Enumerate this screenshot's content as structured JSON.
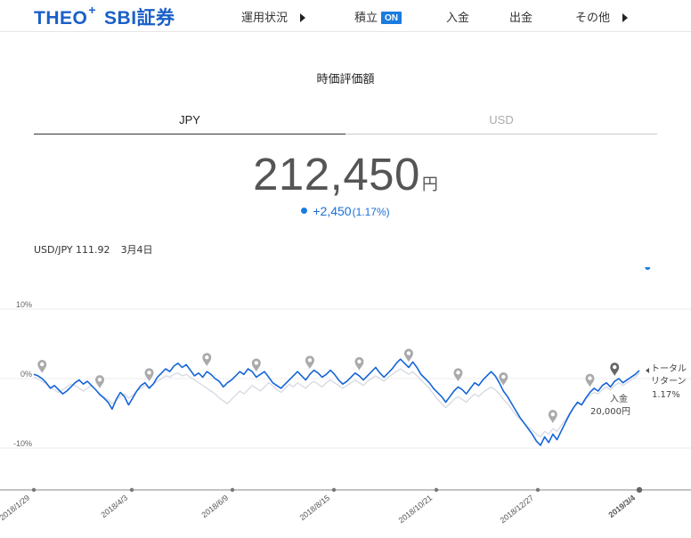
{
  "header": {
    "logo_theo": "THEO",
    "logo_plus": "+",
    "logo_partner": "SBI証券",
    "nav": {
      "performance": "運用状況",
      "savings": "積立",
      "savings_badge": "ON",
      "deposit": "入金",
      "withdraw": "出金",
      "other": "その他"
    }
  },
  "valuation": {
    "title": "時価評価額",
    "tabs": [
      {
        "label": "JPY",
        "active": true
      },
      {
        "label": "USD",
        "active": false
      }
    ],
    "amount": "212,450",
    "unit": "円",
    "change": "+2,450",
    "change_pct": "(1.17%)",
    "fx_label": "USD/JPY 111.92",
    "fx_date": "3月4日"
  },
  "chart_data": {
    "type": "line",
    "y_ticks": [
      "10%",
      "0%",
      "-10%"
    ],
    "ylim": [
      -13,
      13
    ],
    "x_labels": [
      "2018/1/29",
      "2018/4/3",
      "2018/6/9",
      "2018/8/15",
      "2018/10/21",
      "2018/12/27",
      "2019/3/4"
    ],
    "grid": true,
    "colors": {
      "portfolio": "#1565d8",
      "benchmark": "#d8dbe3",
      "marker": "#1a7be0",
      "event": "#aaaaaa",
      "event_dark": "#666666"
    },
    "series": [
      {
        "values": [
          0.6,
          0.4,
          0.0,
          -0.6,
          -1.4,
          -1.0,
          -1.6,
          -2.2,
          -1.8,
          -1.2,
          -0.6,
          -0.2,
          -0.8,
          -0.4,
          -1.0,
          -1.6,
          -2.3,
          -2.8,
          -3.4,
          -4.4,
          -3.0,
          -2.0,
          -2.6,
          -3.8,
          -2.8,
          -1.8,
          -1.0,
          -0.6,
          -1.4,
          -0.8,
          0.2,
          0.8,
          1.4,
          1.0,
          1.8,
          2.2,
          1.6,
          2.0,
          1.2,
          0.4,
          0.8,
          0.2,
          1.0,
          0.6,
          0.0,
          -0.4,
          -1.2,
          -0.6,
          -0.2,
          0.4,
          1.0,
          0.6,
          1.4,
          1.0,
          0.2,
          0.6,
          1.0,
          0.2,
          -0.6,
          -1.0,
          -1.4,
          -0.8,
          -0.2,
          0.4,
          1.0,
          0.4,
          -0.2,
          0.6,
          1.2,
          0.8,
          0.2,
          0.6,
          1.2,
          0.6,
          -0.2,
          -0.8,
          -0.4,
          0.2,
          0.8,
          0.4,
          -0.2,
          0.4,
          1.0,
          1.6,
          0.8,
          0.2,
          0.8,
          1.4,
          2.2,
          2.8,
          2.2,
          1.6,
          2.4,
          1.6,
          0.6,
          0.0,
          -0.6,
          -1.4,
          -2.0,
          -2.6,
          -3.4,
          -2.6,
          -1.8,
          -1.2,
          -1.6,
          -2.2,
          -1.4,
          -0.6,
          -1.0,
          -0.2,
          0.4,
          1.0,
          0.4,
          -0.6,
          -1.8,
          -2.6,
          -3.6,
          -4.6,
          -5.6,
          -6.4,
          -7.2,
          -8.0,
          -9.0,
          -9.6,
          -8.4,
          -9.2,
          -8.0,
          -8.8,
          -7.6,
          -6.4,
          -5.2,
          -4.2,
          -3.4,
          -3.8,
          -2.8,
          -2.0,
          -1.4,
          -1.8,
          -1.0,
          -0.6,
          -1.2,
          -0.4,
          0.0,
          -0.6,
          -0.2,
          0.2,
          0.6,
          1.17
        ],
        "line_style": "solid"
      },
      {
        "values": [
          0.2,
          0.0,
          -0.4,
          -0.8,
          -1.2,
          -1.6,
          -2.0,
          -1.6,
          -1.2,
          -0.8,
          -1.0,
          -1.4,
          -1.8,
          -1.4,
          -1.0,
          -1.6,
          -2.2,
          -2.6,
          -3.0,
          -3.6,
          -3.2,
          -2.6,
          -2.2,
          -2.8,
          -2.4,
          -1.8,
          -1.4,
          -1.0,
          -1.2,
          -0.8,
          -0.4,
          0.0,
          0.4,
          0.2,
          0.6,
          0.8,
          0.4,
          0.6,
          0.2,
          -0.2,
          -0.6,
          -1.0,
          -1.4,
          -1.8,
          -2.2,
          -2.8,
          -3.2,
          -3.6,
          -3.0,
          -2.4,
          -1.8,
          -2.2,
          -1.6,
          -1.0,
          -1.4,
          -1.8,
          -1.2,
          -0.6,
          -1.0,
          -1.6,
          -2.0,
          -1.4,
          -0.8,
          -1.2,
          -0.6,
          -1.0,
          -1.4,
          -0.8,
          -0.4,
          -0.8,
          -1.2,
          -0.6,
          -0.2,
          -0.6,
          -1.0,
          -1.4,
          -1.0,
          -0.6,
          -0.2,
          -0.6,
          -1.0,
          -0.4,
          0.0,
          0.4,
          0.0,
          -0.4,
          0.2,
          0.6,
          1.0,
          1.4,
          1.0,
          0.6,
          1.0,
          0.4,
          -0.2,
          -0.8,
          -1.4,
          -2.2,
          -3.0,
          -3.6,
          -4.2,
          -3.6,
          -3.0,
          -2.6,
          -3.0,
          -3.4,
          -2.8,
          -2.2,
          -2.6,
          -2.0,
          -1.6,
          -1.2,
          -1.6,
          -2.2,
          -3.0,
          -3.6,
          -4.4,
          -5.2,
          -5.8,
          -6.4,
          -7.0,
          -7.4,
          -8.0,
          -8.4,
          -7.6,
          -8.0,
          -7.2,
          -7.6,
          -6.8,
          -6.0,
          -5.0,
          -4.2,
          -3.6,
          -3.8,
          -3.0,
          -2.4,
          -2.0,
          -2.2,
          -1.6,
          -1.2,
          -1.6,
          -1.0,
          -0.6,
          -1.0,
          -0.6,
          -0.2,
          0.2,
          0.8
        ],
        "line_style": "solid"
      }
    ],
    "event_markers": [
      2,
      16,
      28,
      42,
      54,
      67,
      79,
      91,
      103,
      114,
      126,
      135,
      141
    ],
    "current_marker_index": 149,
    "annotations": {
      "deposit_label": "入金",
      "deposit_amount": "20,000円",
      "return_label_1": "トータル",
      "return_label_2": "リターン",
      "return_value": "1.17%"
    }
  }
}
